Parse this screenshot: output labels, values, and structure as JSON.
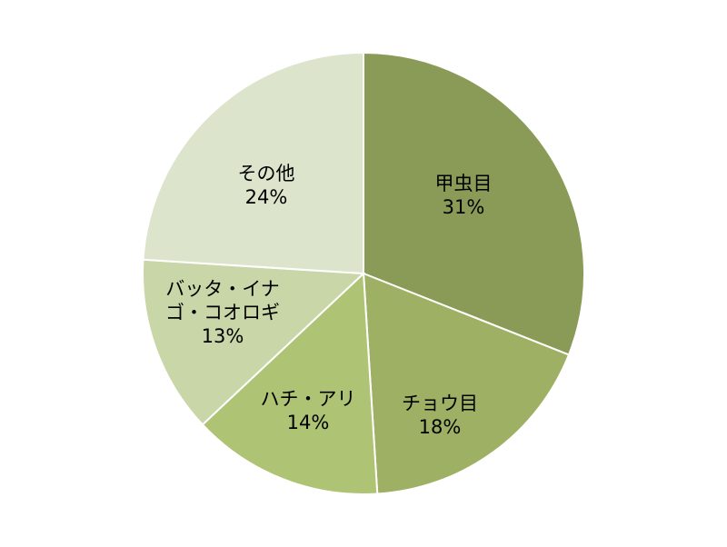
{
  "chart_data": {
    "type": "pie",
    "title": "",
    "slices": [
      {
        "label_lines": [
          "甲虫目"
        ],
        "value": 31,
        "value_text": "31%",
        "color": "#8a9b57"
      },
      {
        "label_lines": [
          "チョウ目"
        ],
        "value": 18,
        "value_text": "18%",
        "color": "#9eb063"
      },
      {
        "label_lines": [
          "ハチ・アリ"
        ],
        "value": 14,
        "value_text": "14%",
        "color": "#aec373"
      },
      {
        "label_lines": [
          "バッタ・イナ",
          "ゴ・コオロギ"
        ],
        "value": 13,
        "value_text": "13%",
        "color": "#c9d6a8"
      },
      {
        "label_lines": [
          "その他"
        ],
        "value": 24,
        "value_text": "24%",
        "color": "#dce4cc"
      }
    ],
    "start_angle": "12 o'clock",
    "direction": "clockwise",
    "legend": "none",
    "data_labels": "inside"
  }
}
